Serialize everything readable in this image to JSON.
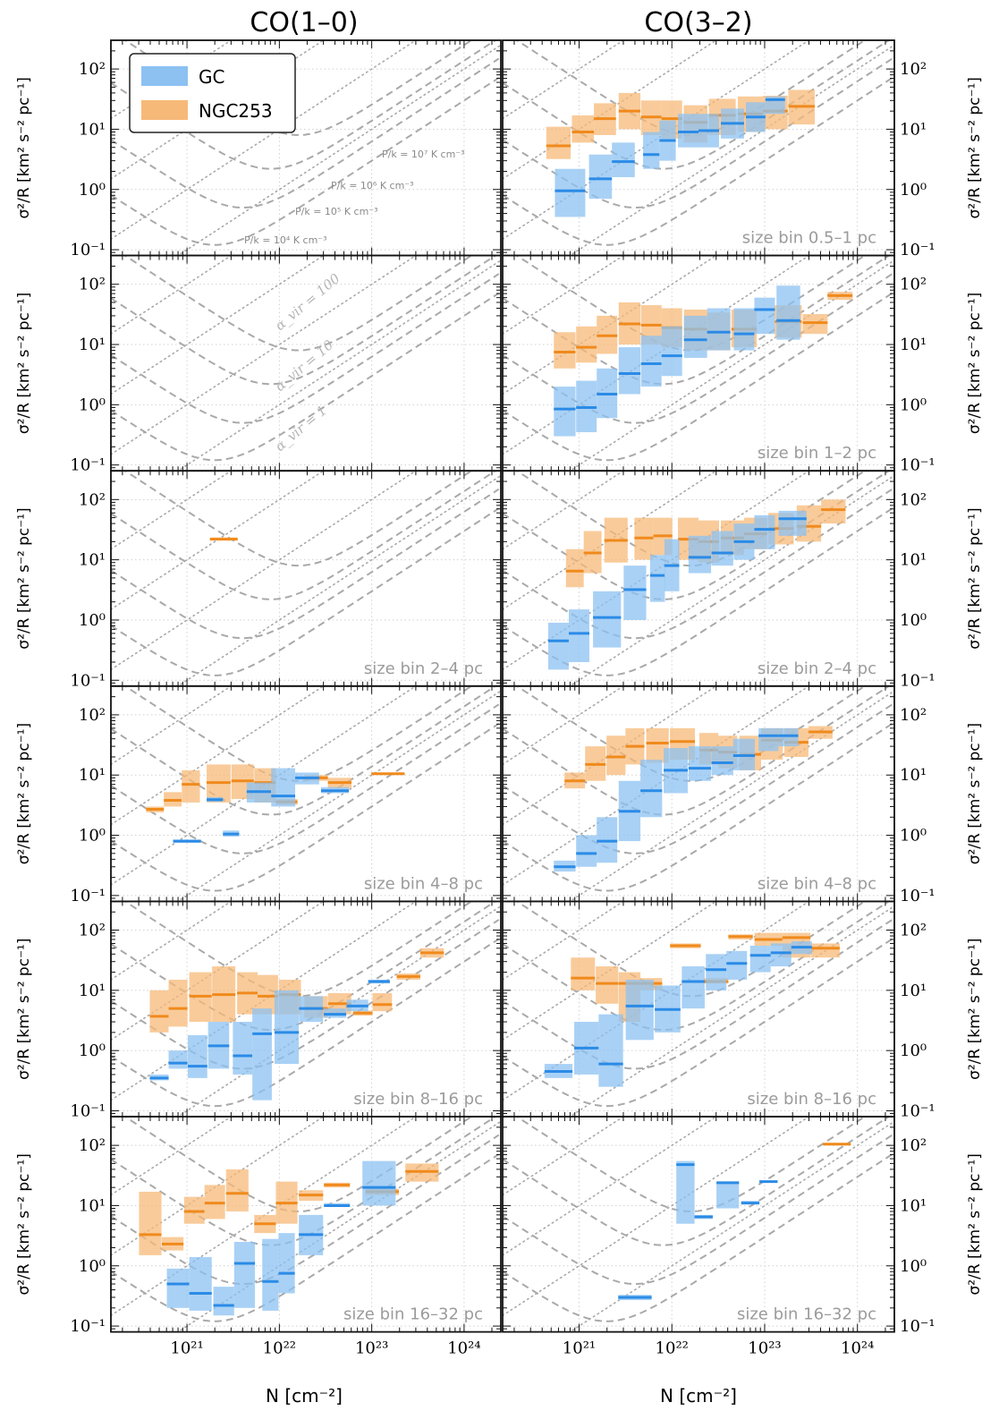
{
  "columns": [
    "CO(1–0)",
    "CO(3–2)"
  ],
  "y_label": "σ²/R [km² s⁻² pc⁻¹]",
  "x_label": "N [cm⁻²]",
  "x_tick_labels": [
    "10²¹",
    "10²²",
    "10²³",
    "10²⁴"
  ],
  "y_tick_labels": [
    "10⁻¹",
    "10⁰",
    "10¹",
    "10²"
  ],
  "legend": [
    {
      "label": "GC",
      "color": "#63a7ee"
    },
    {
      "label": "NGC253",
      "color": "#f5a54a"
    }
  ],
  "colors": {
    "gc_fill": "#8cc1f2",
    "gc_line": "#2b8be6",
    "ngc_fill": "#f7b978",
    "ngc_line": "#f08a1c",
    "guide": "#a9a9a9"
  },
  "pressure_labels": [
    "P/k = 10⁷ K cm⁻³",
    "P/k = 10⁶ K cm⁻³",
    "P/k = 10⁵ K cm⁻³",
    "P/k = 10⁴ K cm⁻³"
  ],
  "alpha_labels": [
    "α_vir = 100",
    "α_vir = 10",
    "α_vir = 1"
  ],
  "chart_data": {
    "type": "scatter",
    "x_scale": "log",
    "y_scale": "log",
    "xlim": [
      1.5e+20,
      2.5e+24
    ],
    "ylim": [
      0.08,
      300
    ],
    "grid": true,
    "legend_position": "top-left",
    "panels": [
      {
        "row": 0,
        "col": 0,
        "size_bin": "",
        "gc": [],
        "ngc": []
      },
      {
        "row": 0,
        "col": 1,
        "size_bin": "size bin 0.5–1 pc",
        "gc": [
          [
            8e+20,
            0.95,
            0.35,
            2.2
          ],
          [
            1.7e+21,
            1.5,
            0.7,
            3.8
          ],
          [
            3e+21,
            2.9,
            1.6,
            6
          ],
          [
            6e+21,
            3.8,
            2.2,
            9
          ],
          [
            9e+21,
            6.5,
            3,
            14
          ],
          [
            1.5e+22,
            9,
            5,
            18
          ],
          [
            2.5e+22,
            9.5,
            5,
            18
          ],
          [
            4.5e+22,
            12.5,
            7,
            22
          ],
          [
            8e+22,
            16,
            9,
            28
          ],
          [
            1.3e+23,
            31,
            18,
            35
          ]
        ],
        "ngc": [
          [
            6e+20,
            5.3,
            3.2,
            11
          ],
          [
            1.1e+21,
            9,
            6,
            17
          ],
          [
            1.9e+21,
            15,
            8,
            27
          ],
          [
            3.5e+21,
            20,
            10,
            40
          ],
          [
            6e+21,
            16,
            8,
            30
          ],
          [
            1e+22,
            15,
            7,
            30
          ],
          [
            1.8e+22,
            13,
            6,
            25
          ],
          [
            3.5e+22,
            17,
            8,
            32
          ],
          [
            7e+22,
            18,
            9,
            35
          ],
          [
            1.3e+23,
            20,
            10,
            36
          ],
          [
            2.5e+23,
            24,
            12,
            45
          ]
        ]
      },
      {
        "row": 1,
        "col": 0,
        "size_bin": "",
        "gc": [],
        "ngc": []
      },
      {
        "row": 1,
        "col": 1,
        "size_bin": "size bin 1–2 pc",
        "gc": [
          [
            7e+20,
            0.85,
            0.3,
            2
          ],
          [
            1.2e+21,
            0.9,
            0.35,
            2.5
          ],
          [
            2e+21,
            1.5,
            0.6,
            4
          ],
          [
            3.5e+21,
            3.3,
            1.5,
            9
          ],
          [
            6e+21,
            4.8,
            2,
            14
          ],
          [
            1e+22,
            6.5,
            3,
            20
          ],
          [
            1.8e+22,
            12,
            6,
            30
          ],
          [
            3.2e+22,
            16,
            8,
            40
          ],
          [
            6e+22,
            15,
            8,
            40
          ],
          [
            1e+23,
            38,
            15,
            60
          ],
          [
            1.8e+23,
            25,
            12,
            95
          ]
        ],
        "ngc": [
          [
            7e+20,
            7.5,
            4,
            16
          ],
          [
            1.2e+21,
            9,
            5,
            20
          ],
          [
            2e+21,
            14,
            7,
            30
          ],
          [
            3.5e+21,
            22,
            10,
            50
          ],
          [
            6e+21,
            21,
            10,
            45
          ],
          [
            1e+22,
            19,
            9,
            40
          ],
          [
            1.8e+22,
            18,
            8,
            38
          ],
          [
            3.2e+22,
            16,
            8,
            34
          ],
          [
            6e+22,
            18,
            9,
            38
          ],
          [
            1.8e+23,
            24,
            13,
            45
          ],
          [
            3.5e+23,
            23,
            15,
            32
          ],
          [
            6.5e+23,
            65,
            55,
            75
          ]
        ]
      },
      {
        "row": 2,
        "col": 0,
        "size_bin": "size bin 2–4 pc",
        "gc": [],
        "ngc": [
          [
            2.5e+21,
            22,
            21,
            23.5
          ]
        ]
      },
      {
        "row": 2,
        "col": 1,
        "size_bin": "size bin 2–4 pc",
        "gc": [
          [
            6e+20,
            0.45,
            0.15,
            0.9
          ],
          [
            1e+21,
            0.6,
            0.2,
            1.5
          ],
          [
            2e+21,
            1.1,
            0.35,
            3
          ],
          [
            4e+21,
            3.2,
            1,
            8
          ],
          [
            7e+21,
            5.5,
            2,
            12
          ],
          [
            1e+22,
            8,
            3,
            22
          ],
          [
            2e+22,
            11,
            6,
            25
          ],
          [
            3.5e+22,
            13,
            8,
            30
          ],
          [
            6e+22,
            20,
            10,
            40
          ],
          [
            1e+23,
            32,
            15,
            55
          ],
          [
            2e+23,
            48,
            25,
            65
          ]
        ],
        "ngc": [
          [
            9e+20,
            6.5,
            3.5,
            15
          ],
          [
            1.4e+21,
            13,
            6,
            30
          ],
          [
            2.5e+21,
            21,
            9,
            50
          ],
          [
            5e+21,
            23,
            10,
            50
          ],
          [
            8e+21,
            25,
            12,
            50
          ],
          [
            1.5e+22,
            22,
            10,
            50
          ],
          [
            2.5e+22,
            20,
            9,
            45
          ],
          [
            4.5e+22,
            23,
            12,
            45
          ],
          [
            8e+22,
            27,
            15,
            50
          ],
          [
            1.5e+23,
            33,
            18,
            60
          ],
          [
            3e+23,
            36,
            20,
            80
          ],
          [
            5.5e+23,
            68,
            40,
            100
          ]
        ]
      },
      {
        "row": 3,
        "col": 0,
        "size_bin": "size bin 4–8 pc",
        "gc": [
          [
            1e+21,
            0.8,
            0.75,
            0.85
          ],
          [
            2e+21,
            3.9,
            3.6,
            4.3
          ],
          [
            3e+21,
            1.05,
            0.95,
            1.2
          ],
          [
            6e+21,
            5.3,
            3.5,
            7.5
          ],
          [
            1.1e+22,
            4.5,
            3,
            13
          ],
          [
            2e+22,
            9,
            7,
            11
          ],
          [
            4e+22,
            5.5,
            5,
            6.3
          ]
        ],
        "ngc": [
          [
            4.5e+20,
            2.7,
            2.4,
            3
          ],
          [
            7e+20,
            3.8,
            3,
            5.2
          ],
          [
            1.1e+21,
            7,
            3.5,
            12
          ],
          [
            2.2e+21,
            7.5,
            3.5,
            15
          ],
          [
            4e+21,
            8,
            4,
            15
          ],
          [
            7e+21,
            7.5,
            3.5,
            13
          ],
          [
            1.2e+22,
            3.6,
            3.2,
            4
          ],
          [
            2.5e+22,
            9,
            8,
            10
          ],
          [
            4.5e+22,
            7.5,
            6,
            9
          ],
          [
            1.5e+23,
            10.5,
            10,
            11
          ]
        ]
      },
      {
        "row": 3,
        "col": 1,
        "size_bin": "size bin 4–8 pc",
        "gc": [
          [
            7e+20,
            0.3,
            0.25,
            0.38
          ],
          [
            1.2e+21,
            0.5,
            0.3,
            1
          ],
          [
            2e+21,
            0.8,
            0.35,
            2
          ],
          [
            3.5e+21,
            2.5,
            0.8,
            8
          ],
          [
            6e+21,
            5.5,
            2,
            18
          ],
          [
            1.1e+22,
            12,
            5,
            28
          ],
          [
            2e+22,
            13,
            8,
            30
          ],
          [
            3.5e+22,
            16,
            10,
            30
          ],
          [
            6e+22,
            21,
            12,
            40
          ],
          [
            1.1e+23,
            45,
            25,
            60
          ],
          [
            1.8e+23,
            45,
            30,
            60
          ]
        ],
        "ngc": [
          [
            9e+20,
            8,
            6,
            11
          ],
          [
            1.5e+21,
            15,
            8,
            30
          ],
          [
            2.5e+21,
            20,
            10,
            45
          ],
          [
            4e+21,
            30,
            15,
            60
          ],
          [
            7e+21,
            34,
            16,
            60
          ],
          [
            1.3e+22,
            36,
            18,
            60
          ],
          [
            2.5e+22,
            26,
            15,
            50
          ],
          [
            4e+22,
            24,
            13,
            45
          ],
          [
            7e+22,
            22,
            12,
            45
          ],
          [
            1.2e+23,
            38,
            18,
            60
          ],
          [
            2.2e+23,
            35,
            20,
            60
          ],
          [
            4e+23,
            52,
            40,
            65
          ]
        ]
      },
      {
        "row": 4,
        "col": 0,
        "size_bin": "size bin 8–16 pc",
        "gc": [
          [
            5e+20,
            0.35,
            0.32,
            0.4
          ],
          [
            8e+20,
            0.62,
            0.5,
            1
          ],
          [
            1.3e+21,
            0.55,
            0.35,
            1.8
          ],
          [
            2.2e+21,
            1.2,
            0.5,
            3
          ],
          [
            4e+21,
            0.82,
            0.4,
            3
          ],
          [
            6.5e+21,
            1.9,
            0.15,
            5
          ],
          [
            1.2e+22,
            2,
            0.6,
            10
          ],
          [
            2.2e+22,
            5,
            3,
            8
          ],
          [
            4e+22,
            4,
            3.5,
            5
          ],
          [
            7e+22,
            5.5,
            4.5,
            7
          ],
          [
            1.2e+23,
            14,
            13,
            15
          ]
        ],
        "ngc": [
          [
            5e+20,
            3.7,
            2,
            10
          ],
          [
            8e+20,
            5,
            2.5,
            15
          ],
          [
            1.4e+21,
            8,
            3,
            20
          ],
          [
            2.5e+21,
            8.5,
            3,
            25
          ],
          [
            4.5e+21,
            9,
            4,
            20
          ],
          [
            7.5e+21,
            8,
            4,
            18
          ],
          [
            1.3e+22,
            8.5,
            4,
            15
          ],
          [
            2.5e+22,
            5,
            3.5,
            8
          ],
          [
            4.5e+22,
            6,
            4,
            9
          ],
          [
            8e+22,
            4.2,
            3.8,
            4.6
          ],
          [
            1.3e+23,
            5.8,
            4.5,
            9
          ],
          [
            2.5e+23,
            17,
            15,
            19
          ],
          [
            4.5e+23,
            42,
            35,
            50
          ]
        ]
      },
      {
        "row": 4,
        "col": 1,
        "size_bin": "size bin 8–16 pc",
        "gc": [
          [
            6e+20,
            0.45,
            0.35,
            0.6
          ],
          [
            1.2e+21,
            1.1,
            0.4,
            3
          ],
          [
            2.2e+21,
            0.6,
            0.25,
            4
          ],
          [
            4.5e+21,
            5.5,
            1.5,
            15
          ],
          [
            9e+21,
            4.8,
            2,
            12
          ],
          [
            1.7e+22,
            14,
            5,
            25
          ],
          [
            3e+22,
            22,
            10,
            40
          ],
          [
            5e+22,
            28,
            15,
            45
          ],
          [
            9e+22,
            38,
            20,
            55
          ],
          [
            1.5e+23,
            42,
            25,
            60
          ],
          [
            2.5e+23,
            52,
            40,
            65
          ]
        ],
        "ngc": [
          [
            1.1e+21,
            16,
            10,
            35
          ],
          [
            2e+21,
            13,
            6,
            25
          ],
          [
            3.5e+21,
            13,
            3,
            20
          ],
          [
            6e+21,
            13,
            10,
            16
          ],
          [
            1.4e+22,
            55,
            50,
            60
          ],
          [
            3e+22,
            14,
            13,
            16
          ],
          [
            5.5e+22,
            78,
            70,
            85
          ],
          [
            1.1e+23,
            70,
            55,
            90
          ],
          [
            2.2e+23,
            75,
            35,
            90
          ],
          [
            4.5e+23,
            50,
            35,
            60
          ]
        ]
      },
      {
        "row": 5,
        "col": 0,
        "size_bin": "size bin 16–32 pc",
        "gc": [
          [
            8e+20,
            0.5,
            0.2,
            0.9
          ],
          [
            1.4e+21,
            0.35,
            0.18,
            1.4
          ],
          [
            2.5e+21,
            0.22,
            0.15,
            0.45
          ],
          [
            4.2e+21,
            1.1,
            0.2,
            2.5
          ],
          [
            8e+21,
            0.55,
            0.18,
            2.8
          ],
          [
            1.2e+22,
            0.75,
            0.35,
            3.5
          ],
          [
            2.2e+22,
            3.3,
            1.5,
            7
          ],
          [
            4.2e+22,
            10,
            9.5,
            11
          ],
          [
            1.2e+23,
            20,
            10,
            55
          ]
        ],
        "ngc": [
          [
            4e+20,
            3.3,
            1.5,
            17
          ],
          [
            7e+20,
            2.3,
            1.8,
            3
          ],
          [
            1.2e+21,
            8,
            5,
            14
          ],
          [
            2e+21,
            11,
            6,
            22
          ],
          [
            3.5e+21,
            16,
            8,
            40
          ],
          [
            7e+21,
            5,
            3.5,
            7
          ],
          [
            1.2e+22,
            11,
            5,
            25
          ],
          [
            2.2e+22,
            15,
            12,
            18
          ],
          [
            4.2e+22,
            22,
            20,
            24
          ],
          [
            1.3e+23,
            17,
            15,
            19
          ],
          [
            3.5e+23,
            37,
            25,
            50
          ]
        ]
      },
      {
        "row": 5,
        "col": 1,
        "size_bin": "size bin 16–32 pc",
        "gc": [
          [
            4e+21,
            0.3,
            0.27,
            0.33
          ],
          [
            1.4e+22,
            48,
            5,
            55
          ],
          [
            2.2e+22,
            6.5,
            6,
            7
          ],
          [
            4e+22,
            24,
            9,
            25
          ],
          [
            7e+22,
            11,
            10.5,
            12
          ],
          [
            1.1e+23,
            25,
            24,
            26
          ]
        ],
        "ngc": [
          [
            6e+23,
            105,
            100,
            110
          ]
        ]
      }
    ]
  }
}
